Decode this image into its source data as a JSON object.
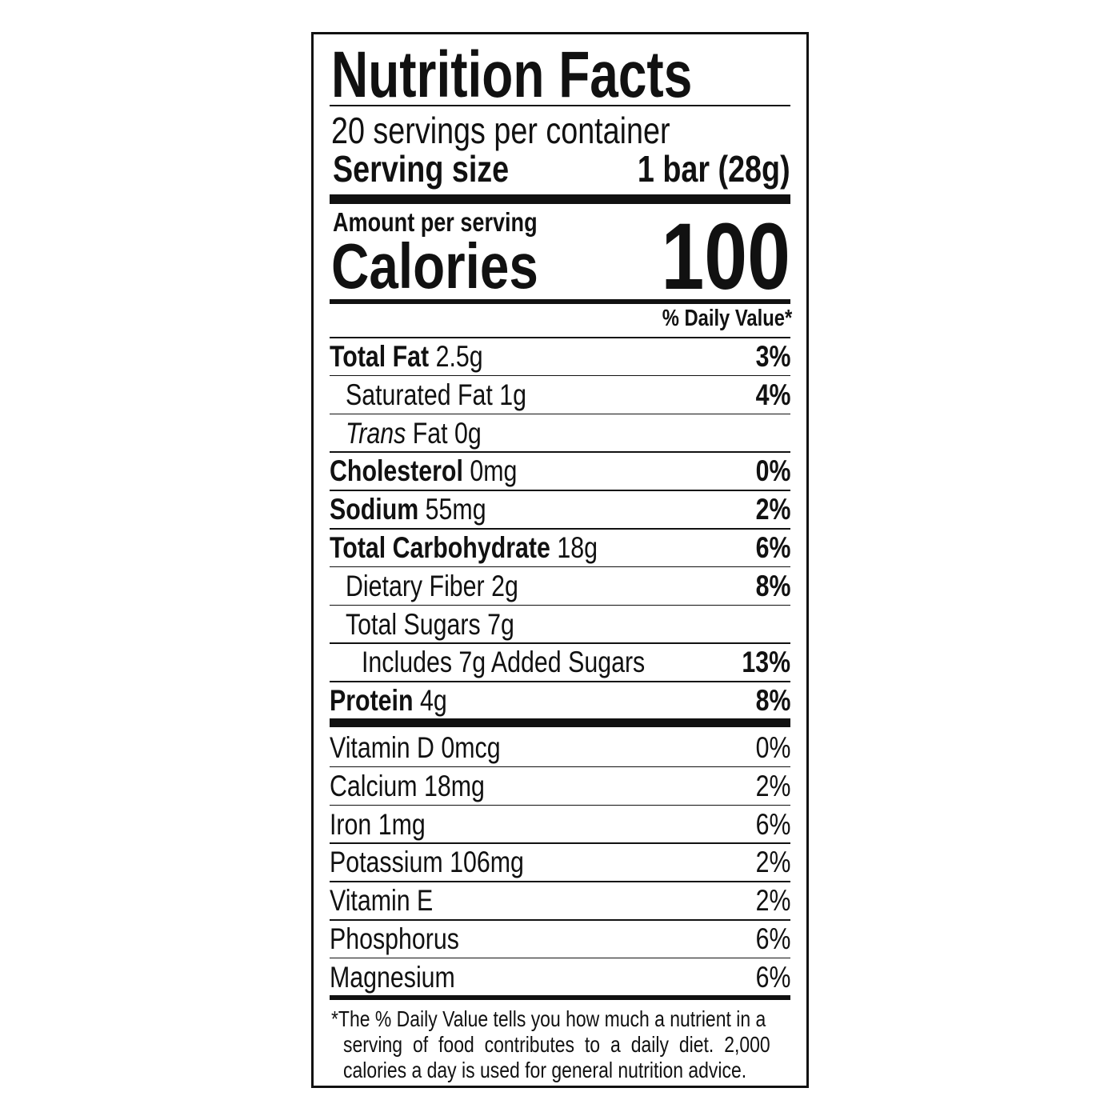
{
  "title": "Nutrition Facts",
  "servings_per_container": "20 servings per container",
  "serving_size_label": "Serving size",
  "serving_size_value": "1 bar (28g)",
  "amount_per_serving": "Amount per serving",
  "calories_label": "Calories",
  "calories_value": "100",
  "daily_value_header": "% Daily Value*",
  "nutrients": [
    {
      "name": "Total Fat",
      "amount": "2.5g",
      "dv": "3%"
    },
    {
      "name": "Saturated Fat",
      "amount": "1g",
      "dv": "4%"
    },
    {
      "name": "Trans",
      "name_suffix": "Fat",
      "amount": "0g",
      "dv": ""
    },
    {
      "name": "Cholesterol",
      "amount": "0mg",
      "dv": "0%"
    },
    {
      "name": "Sodium",
      "amount": "55mg",
      "dv": "2%"
    },
    {
      "name": "Total Carbohydrate",
      "amount": "18g",
      "dv": "6%"
    },
    {
      "name": "Dietary Fiber",
      "amount": "2g",
      "dv": "8%"
    },
    {
      "name": "Total Sugars",
      "amount": "7g",
      "dv": ""
    },
    {
      "name": "Includes 7g Added Sugars",
      "amount": "",
      "dv": "13%"
    },
    {
      "name": "Protein",
      "amount": "4g",
      "dv": "8%"
    }
  ],
  "vitamins": [
    {
      "label": "Vitamin D 0mcg",
      "dv": "0%"
    },
    {
      "label": "Calcium 18mg",
      "dv": "2%"
    },
    {
      "label": "Iron 1mg",
      "dv": "6%"
    },
    {
      "label": "Potassium 106mg",
      "dv": "2%"
    },
    {
      "label": "Vitamin E",
      "dv": "2%"
    },
    {
      "label": "Phosphorus",
      "dv": "6%"
    },
    {
      "label": "Magnesium",
      "dv": "6%"
    }
  ],
  "footnote": [
    "*The % Daily Value tells you how much a nutrient in a",
    "serving of food contributes to a daily diet. 2,000",
    "calories a day is used for general nutrition advice."
  ]
}
